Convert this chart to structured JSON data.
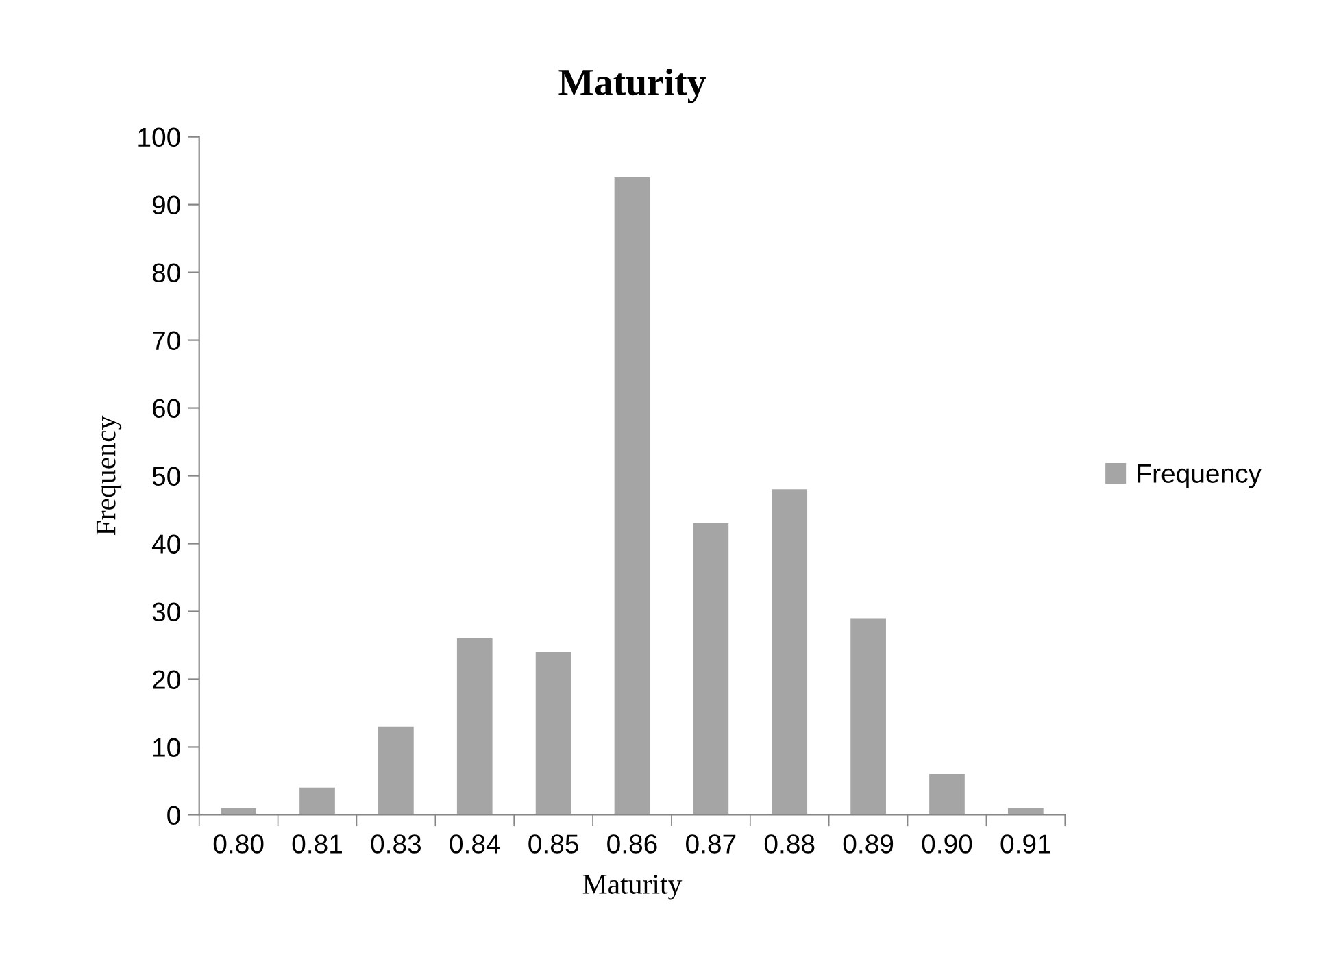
{
  "chart_data": {
    "type": "bar",
    "title": "Maturity",
    "xlabel": "Maturity",
    "ylabel": "Frequency",
    "categories": [
      "0.80",
      "0.81",
      "0.83",
      "0.84",
      "0.85",
      "0.86",
      "0.87",
      "0.88",
      "0.89",
      "0.90",
      "0.91"
    ],
    "series": [
      {
        "name": "Frequency",
        "color": "#a5a5a5",
        "values": [
          1,
          4,
          13,
          26,
          24,
          94,
          43,
          48,
          29,
          6,
          1
        ]
      }
    ],
    "ylim": [
      0,
      100
    ],
    "yticks": [
      0,
      10,
      20,
      30,
      40,
      50,
      60,
      70,
      80,
      90,
      100
    ],
    "grid": false,
    "legend": "right"
  }
}
